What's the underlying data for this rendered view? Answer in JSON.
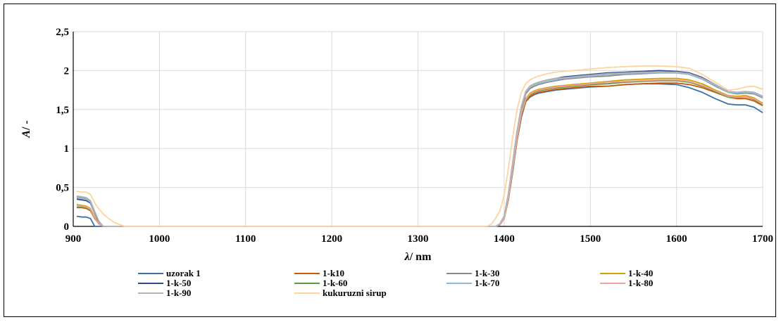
{
  "chart_data": {
    "type": "line",
    "xlabel_symbol": "λ",
    "xlabel_unit": "/ nm",
    "ylabel_symbol": "A",
    "ylabel_unit": "/ -",
    "xlim": [
      900,
      1700
    ],
    "ylim": [
      0,
      2.5
    ],
    "x_ticks": [
      900,
      1000,
      1100,
      1200,
      1300,
      1400,
      1500,
      1600,
      1700
    ],
    "x_tick_labels": [
      "900",
      "1000",
      "1100",
      "1200",
      "1300",
      "1400",
      "1500",
      "1600",
      "1700"
    ],
    "y_ticks": [
      0,
      0.5,
      1,
      1.5,
      2,
      2.5
    ],
    "y_tick_labels": [
      "0",
      "0,5",
      "1",
      "1,5",
      "2",
      "2,5"
    ],
    "grid": true,
    "legend_position": "bottom",
    "series": [
      {
        "name": "uzorak 1",
        "color": "#3d6fa8",
        "x": [
          904,
          910,
          915,
          920,
          925,
          930,
          935,
          1390,
          1395,
          1400,
          1405,
          1410,
          1415,
          1420,
          1425,
          1430,
          1435,
          1440,
          1450,
          1460,
          1470,
          1480,
          1500,
          1520,
          1540,
          1560,
          1580,
          1600,
          1615,
          1630,
          1645,
          1660,
          1670,
          1680,
          1690,
          1700
        ],
        "y": [
          0.13,
          0.12,
          0.12,
          0.1,
          0.0,
          0.0,
          0.0,
          0.0,
          0.02,
          0.1,
          0.35,
          0.7,
          1.1,
          1.4,
          1.6,
          1.66,
          1.69,
          1.71,
          1.73,
          1.75,
          1.76,
          1.77,
          1.79,
          1.8,
          1.82,
          1.83,
          1.83,
          1.82,
          1.78,
          1.72,
          1.64,
          1.57,
          1.56,
          1.56,
          1.53,
          1.46
        ]
      },
      {
        "name": "1-k10",
        "color": "#c55a11",
        "x": [
          904,
          910,
          915,
          920,
          925,
          930,
          935,
          940,
          1390,
          1395,
          1400,
          1405,
          1410,
          1415,
          1420,
          1425,
          1430,
          1435,
          1440,
          1450,
          1460,
          1470,
          1480,
          1500,
          1520,
          1540,
          1560,
          1580,
          1600,
          1615,
          1630,
          1645,
          1660,
          1670,
          1680,
          1690,
          1700
        ],
        "y": [
          0.24,
          0.24,
          0.23,
          0.2,
          0.1,
          0.03,
          0.0,
          0.0,
          0.0,
          0.02,
          0.1,
          0.35,
          0.72,
          1.1,
          1.42,
          1.6,
          1.67,
          1.7,
          1.72,
          1.74,
          1.76,
          1.77,
          1.78,
          1.8,
          1.8,
          1.82,
          1.83,
          1.84,
          1.84,
          1.82,
          1.78,
          1.72,
          1.66,
          1.64,
          1.64,
          1.61,
          1.55
        ]
      },
      {
        "name": "1-k-30",
        "color": "#8a8a8a",
        "x": [
          904,
          910,
          915,
          920,
          925,
          930,
          935,
          940,
          1390,
          1395,
          1400,
          1405,
          1410,
          1415,
          1420,
          1425,
          1430,
          1435,
          1440,
          1450,
          1460,
          1470,
          1480,
          1500,
          1520,
          1540,
          1560,
          1580,
          1600,
          1615,
          1630,
          1645,
          1660,
          1670,
          1680,
          1690,
          1700
        ],
        "y": [
          0.38,
          0.37,
          0.36,
          0.32,
          0.18,
          0.06,
          0.0,
          0.0,
          0.0,
          0.03,
          0.12,
          0.4,
          0.78,
          1.18,
          1.5,
          1.7,
          1.77,
          1.8,
          1.82,
          1.85,
          1.87,
          1.89,
          1.9,
          1.92,
          1.93,
          1.95,
          1.96,
          1.97,
          1.97,
          1.95,
          1.89,
          1.8,
          1.72,
          1.7,
          1.71,
          1.7,
          1.65
        ]
      },
      {
        "name": "1-k-40",
        "color": "#d4a000",
        "x": [
          904,
          910,
          915,
          920,
          925,
          930,
          935,
          940,
          1390,
          1395,
          1400,
          1405,
          1410,
          1415,
          1420,
          1425,
          1430,
          1435,
          1440,
          1450,
          1460,
          1470,
          1480,
          1500,
          1520,
          1540,
          1560,
          1580,
          1600,
          1615,
          1630,
          1645,
          1660,
          1670,
          1680,
          1690,
          1700
        ],
        "y": [
          0.28,
          0.27,
          0.26,
          0.23,
          0.12,
          0.04,
          0.0,
          0.0,
          0.0,
          0.02,
          0.11,
          0.37,
          0.75,
          1.14,
          1.46,
          1.64,
          1.71,
          1.74,
          1.76,
          1.78,
          1.8,
          1.81,
          1.82,
          1.84,
          1.86,
          1.88,
          1.89,
          1.9,
          1.9,
          1.88,
          1.83,
          1.75,
          1.68,
          1.67,
          1.68,
          1.65,
          1.58
        ]
      },
      {
        "name": "1-k-50",
        "color": "#2e4a8b",
        "x": [
          904,
          910,
          915,
          920,
          925,
          930,
          935,
          940,
          1390,
          1395,
          1400,
          1405,
          1410,
          1415,
          1420,
          1425,
          1430,
          1435,
          1440,
          1450,
          1460,
          1470,
          1480,
          1500,
          1520,
          1540,
          1560,
          1580,
          1600,
          1615,
          1630,
          1645,
          1660,
          1670,
          1680,
          1690,
          1700
        ],
        "y": [
          0.35,
          0.34,
          0.33,
          0.3,
          0.17,
          0.05,
          0.0,
          0.0,
          0.0,
          0.03,
          0.13,
          0.42,
          0.82,
          1.22,
          1.54,
          1.73,
          1.8,
          1.83,
          1.85,
          1.88,
          1.9,
          1.92,
          1.93,
          1.95,
          1.97,
          1.98,
          1.99,
          2.0,
          1.99,
          1.97,
          1.91,
          1.82,
          1.73,
          1.72,
          1.73,
          1.72,
          1.67
        ]
      },
      {
        "name": "1-k-60",
        "color": "#5a9a3a",
        "x": [
          904,
          910,
          915,
          920,
          925,
          930,
          935,
          940,
          1390,
          1395,
          1400,
          1405,
          1410,
          1415,
          1420,
          1425,
          1430,
          1435,
          1440,
          1450,
          1460,
          1470,
          1480,
          1500,
          1520,
          1540,
          1560,
          1580,
          1600,
          1615,
          1630,
          1645,
          1660,
          1670,
          1680,
          1690,
          1700
        ],
        "y": [
          0.25,
          0.25,
          0.24,
          0.21,
          0.11,
          0.03,
          0.0,
          0.0,
          0.0,
          0.02,
          0.1,
          0.36,
          0.73,
          1.12,
          1.44,
          1.62,
          1.69,
          1.72,
          1.74,
          1.76,
          1.78,
          1.79,
          1.8,
          1.82,
          1.83,
          1.85,
          1.86,
          1.87,
          1.87,
          1.85,
          1.8,
          1.73,
          1.66,
          1.65,
          1.66,
          1.63,
          1.56
        ]
      },
      {
        "name": "1-k-70",
        "color": "#8fb8d8",
        "x": [
          904,
          910,
          915,
          920,
          925,
          930,
          935,
          940,
          1390,
          1395,
          1400,
          1405,
          1410,
          1415,
          1420,
          1425,
          1430,
          1435,
          1440,
          1450,
          1460,
          1470,
          1480,
          1500,
          1520,
          1540,
          1560,
          1580,
          1600,
          1615,
          1630,
          1645,
          1660,
          1670,
          1680,
          1690,
          1700
        ],
        "y": [
          0.37,
          0.36,
          0.35,
          0.31,
          0.18,
          0.06,
          0.0,
          0.0,
          0.0,
          0.03,
          0.13,
          0.42,
          0.81,
          1.21,
          1.53,
          1.72,
          1.79,
          1.82,
          1.84,
          1.87,
          1.89,
          1.9,
          1.91,
          1.93,
          1.95,
          1.96,
          1.97,
          1.97,
          1.97,
          1.95,
          1.89,
          1.81,
          1.72,
          1.71,
          1.72,
          1.71,
          1.66
        ]
      },
      {
        "name": "1-k-80",
        "color": "#f4a09a",
        "x": [
          904,
          910,
          915,
          920,
          925,
          930,
          935,
          940,
          1390,
          1395,
          1400,
          1405,
          1410,
          1415,
          1420,
          1425,
          1430,
          1435,
          1440,
          1450,
          1460,
          1470,
          1480,
          1500,
          1520,
          1540,
          1560,
          1580,
          1600,
          1615,
          1630,
          1645,
          1660,
          1670,
          1680,
          1690,
          1700
        ],
        "y": [
          0.26,
          0.26,
          0.25,
          0.22,
          0.11,
          0.03,
          0.0,
          0.0,
          0.0,
          0.02,
          0.1,
          0.37,
          0.74,
          1.13,
          1.45,
          1.63,
          1.7,
          1.73,
          1.75,
          1.77,
          1.79,
          1.8,
          1.81,
          1.83,
          1.85,
          1.86,
          1.87,
          1.88,
          1.88,
          1.86,
          1.81,
          1.74,
          1.67,
          1.66,
          1.66,
          1.64,
          1.57
        ]
      },
      {
        "name": "1-k-90",
        "color": "#b4b4b4",
        "x": [
          904,
          910,
          915,
          920,
          925,
          930,
          935,
          940,
          1390,
          1395,
          1400,
          1405,
          1410,
          1415,
          1420,
          1425,
          1430,
          1435,
          1440,
          1450,
          1460,
          1470,
          1480,
          1500,
          1520,
          1540,
          1560,
          1580,
          1600,
          1615,
          1630,
          1645,
          1660,
          1670,
          1680,
          1690,
          1700
        ],
        "y": [
          0.39,
          0.38,
          0.37,
          0.33,
          0.19,
          0.06,
          0.0,
          0.0,
          0.0,
          0.03,
          0.13,
          0.43,
          0.82,
          1.22,
          1.54,
          1.73,
          1.8,
          1.83,
          1.85,
          1.88,
          1.9,
          1.91,
          1.92,
          1.94,
          1.96,
          1.97,
          1.98,
          1.98,
          1.98,
          1.96,
          1.9,
          1.82,
          1.73,
          1.72,
          1.73,
          1.72,
          1.67
        ]
      },
      {
        "name": "kukuruzni sirup",
        "color": "#fdd49e",
        "x": [
          904,
          910,
          915,
          920,
          925,
          930,
          935,
          940,
          945,
          950,
          955,
          960,
          965,
          1380,
          1385,
          1390,
          1395,
          1400,
          1405,
          1410,
          1415,
          1420,
          1425,
          1430,
          1435,
          1440,
          1450,
          1460,
          1470,
          1480,
          1500,
          1520,
          1540,
          1560,
          1580,
          1600,
          1615,
          1630,
          1645,
          1660,
          1670,
          1680,
          1690,
          1700
        ],
        "y": [
          0.45,
          0.44,
          0.44,
          0.41,
          0.3,
          0.22,
          0.16,
          0.11,
          0.07,
          0.04,
          0.02,
          0.0,
          0.0,
          0.0,
          0.03,
          0.1,
          0.2,
          0.4,
          0.75,
          1.15,
          1.5,
          1.72,
          1.83,
          1.88,
          1.91,
          1.93,
          1.96,
          1.98,
          1.99,
          2.0,
          2.02,
          2.04,
          2.05,
          2.06,
          2.06,
          2.05,
          2.03,
          1.95,
          1.85,
          1.75,
          1.76,
          1.79,
          1.8,
          1.76
        ]
      }
    ]
  }
}
